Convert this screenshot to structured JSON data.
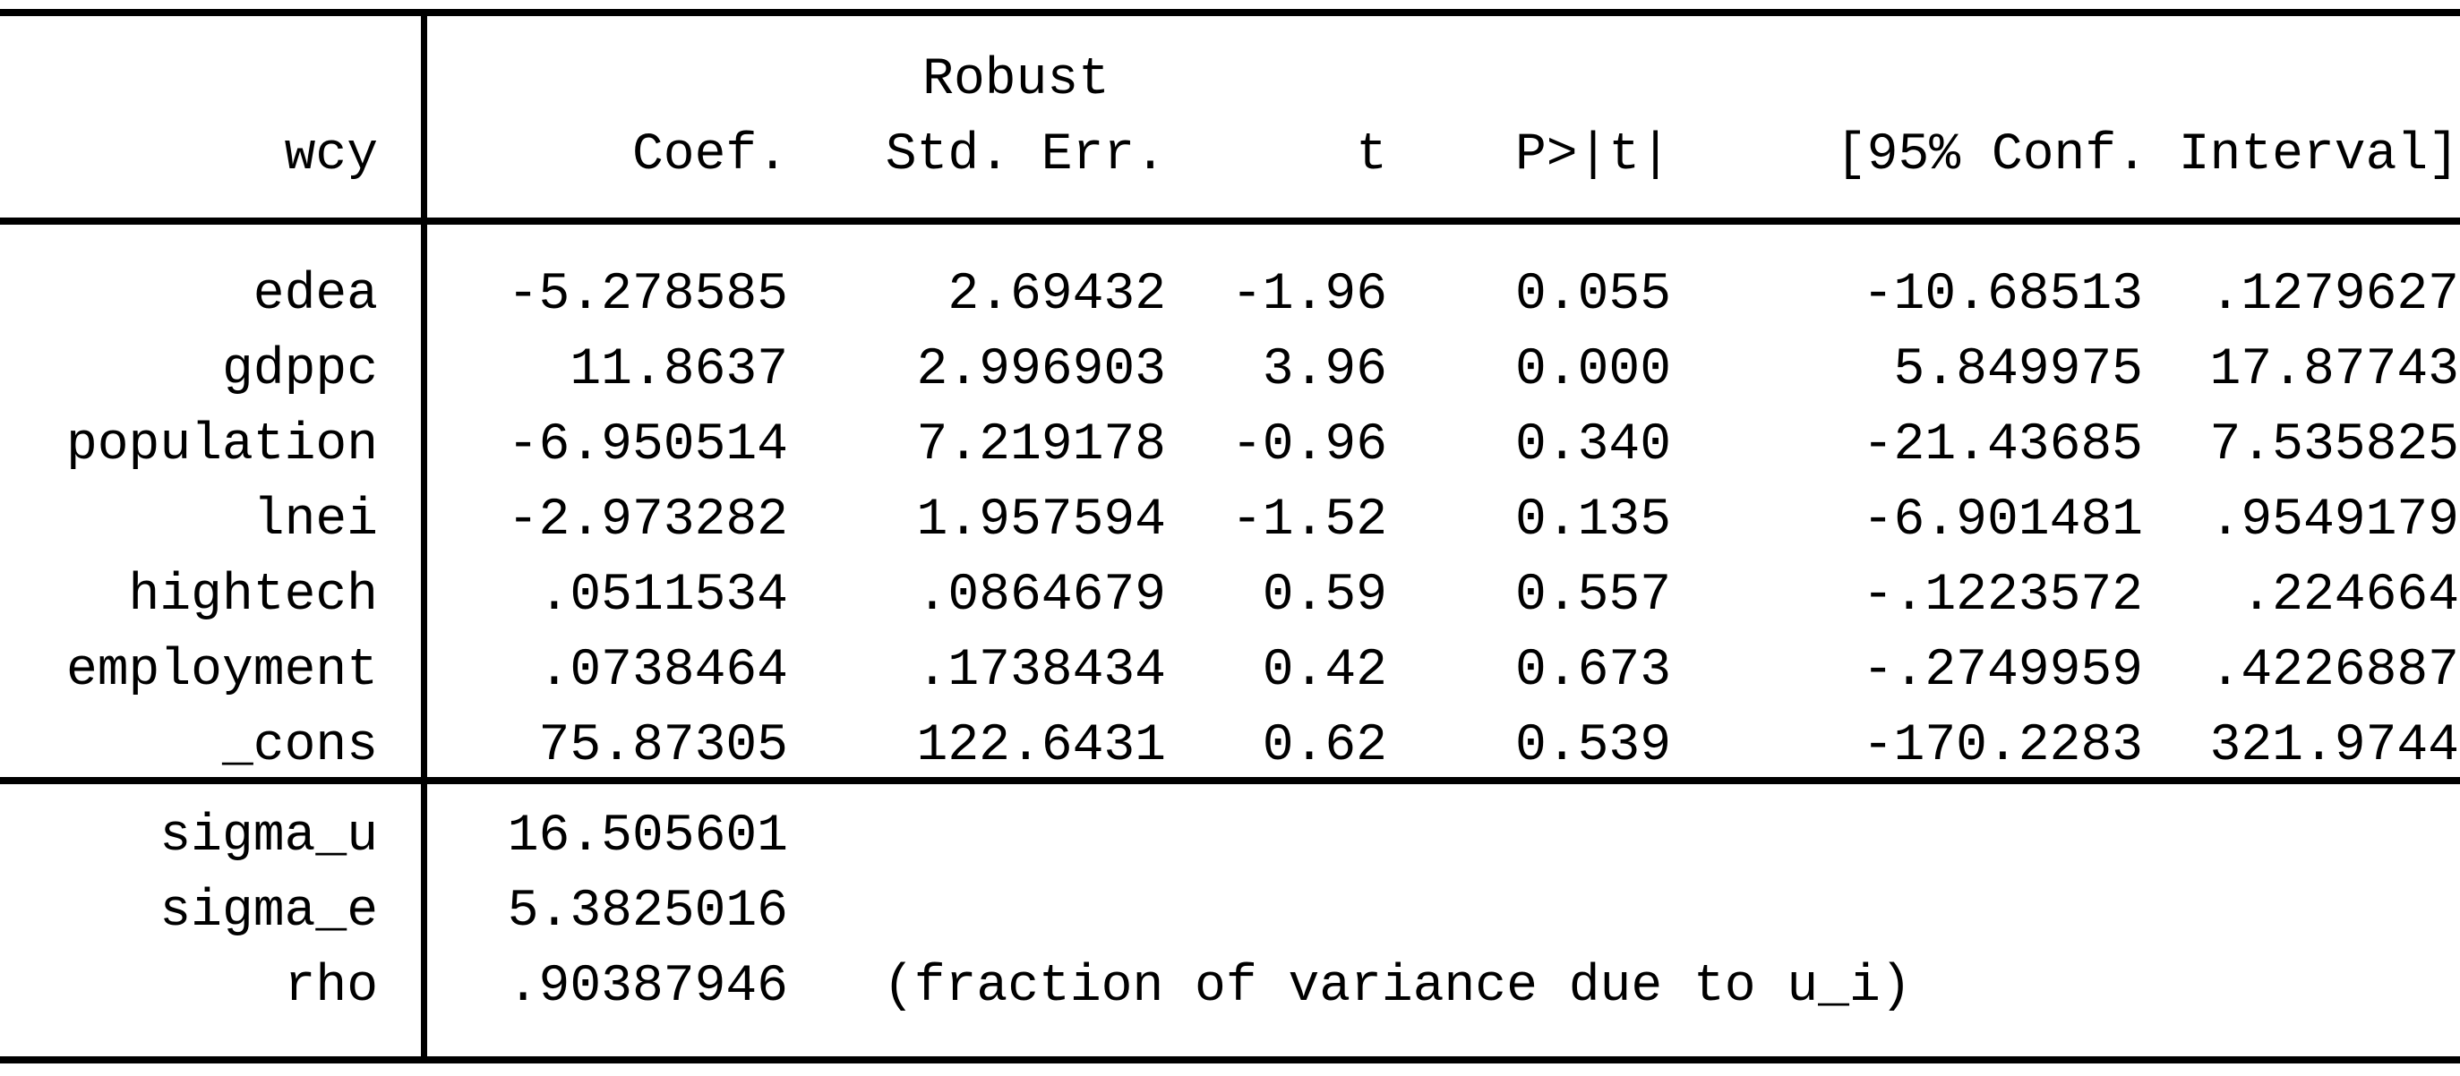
{
  "colors": {
    "text": "#000000",
    "background": "#ffffff",
    "rule": "#000000"
  },
  "table": {
    "depvar": "wcy",
    "header": {
      "robust": "Robust",
      "coef": "Coef.",
      "std_err": "Std. Err.",
      "t": "t",
      "p": "P>|t|",
      "conf_interval": "[95% Conf. Interval]"
    },
    "coefficients": [
      {
        "var": "edea",
        "coef": "-5.278585",
        "std_err": "2.69432",
        "t": "-1.96",
        "p": "0.055",
        "ci_low": "-10.68513",
        "ci_high": ".1279627"
      },
      {
        "var": "gdppc",
        "coef": "11.8637",
        "std_err": "2.996903",
        "t": "3.96",
        "p": "0.000",
        "ci_low": "5.849975",
        "ci_high": "17.87743"
      },
      {
        "var": "population",
        "coef": "-6.950514",
        "std_err": "7.219178",
        "t": "-0.96",
        "p": "0.340",
        "ci_low": "-21.43685",
        "ci_high": "7.535825"
      },
      {
        "var": "lnei",
        "coef": "-2.973282",
        "std_err": "1.957594",
        "t": "-1.52",
        "p": "0.135",
        "ci_low": "-6.901481",
        "ci_high": ".9549179"
      },
      {
        "var": "hightech",
        "coef": ".0511534",
        "std_err": ".0864679",
        "t": "0.59",
        "p": "0.557",
        "ci_low": "-.1223572",
        "ci_high": ".224664"
      },
      {
        "var": "employment",
        "coef": ".0738464",
        "std_err": ".1738434",
        "t": "0.42",
        "p": "0.673",
        "ci_low": "-.2749959",
        "ci_high": ".4226887"
      },
      {
        "var": "_cons",
        "coef": "75.87305",
        "std_err": "122.6431",
        "t": "0.62",
        "p": "0.539",
        "ci_low": "-170.2283",
        "ci_high": "321.9744"
      }
    ],
    "variance_components": [
      {
        "var": "sigma_u",
        "value": "16.505601",
        "note": ""
      },
      {
        "var": "sigma_e",
        "value": "5.3825016",
        "note": ""
      },
      {
        "var": "rho",
        "value": ".90387946",
        "note": "(fraction of variance due to u_i)"
      }
    ]
  }
}
